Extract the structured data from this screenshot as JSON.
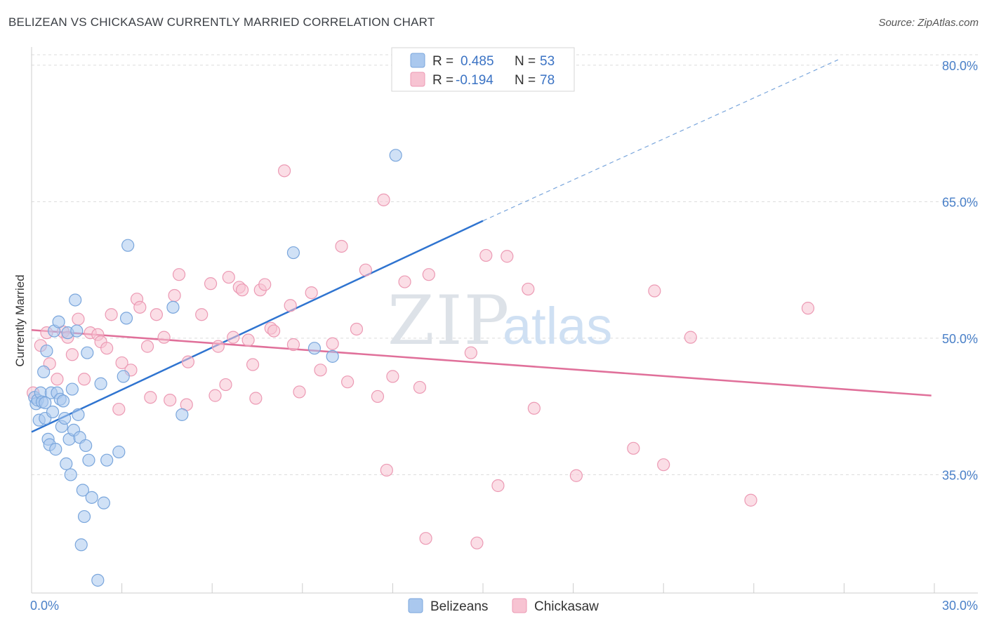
{
  "title": "BELIZEAN VS CHICKASAW CURRENTLY MARRIED CORRELATION CHART",
  "source": "Source: ZipAtlas.com",
  "watermark": {
    "zip": "ZIP",
    "atlas": "atlas"
  },
  "legend": {
    "r_label": "R =",
    "n_label": "N =",
    "rows": [
      {
        "name": "Belizeans",
        "r": "0.485",
        "n": "53",
        "color": "#aac8ee",
        "stroke": "#7aa6dc"
      },
      {
        "name": "Chickasaw",
        "r": "-0.194",
        "n": "78",
        "color": "#f7c3d2",
        "stroke": "#ec9ab4"
      }
    ]
  },
  "chart_data": {
    "type": "scatter",
    "title": "BELIZEAN VS CHICKASAW CURRENTLY MARRIED CORRELATION CHART",
    "xlabel": "",
    "ylabel": "Currently Married",
    "xlim": [
      0,
      30
    ],
    "ylim": [
      22,
      82
    ],
    "x_tick_labels": [
      "0.0%",
      "30.0%"
    ],
    "y_ticks": [
      35,
      50,
      65,
      80
    ],
    "y_tick_labels": [
      "35.0%",
      "50.0%",
      "65.0%",
      "80.0%"
    ],
    "grid": true,
    "legend_position": "top-center",
    "series": [
      {
        "name": "Belizeans",
        "color": "#7aa6dc",
        "fill": "#aac8ee",
        "points": [
          [
            0.1,
            43.5
          ],
          [
            0.15,
            42.8
          ],
          [
            0.2,
            43.2
          ],
          [
            0.25,
            41.0
          ],
          [
            0.3,
            44.0
          ],
          [
            0.35,
            43.0
          ],
          [
            0.4,
            46.3
          ],
          [
            0.45,
            41.2
          ],
          [
            0.5,
            48.6
          ],
          [
            0.55,
            38.9
          ],
          [
            0.6,
            38.3
          ],
          [
            0.65,
            44.0
          ],
          [
            0.7,
            41.9
          ],
          [
            0.75,
            50.8
          ],
          [
            0.8,
            37.8
          ],
          [
            0.85,
            44.0
          ],
          [
            0.9,
            51.8
          ],
          [
            0.95,
            43.3
          ],
          [
            1.0,
            40.3
          ],
          [
            1.05,
            43.1
          ],
          [
            1.1,
            41.2
          ],
          [
            1.15,
            36.2
          ],
          [
            1.2,
            50.6
          ],
          [
            1.25,
            38.9
          ],
          [
            1.3,
            35.0
          ],
          [
            1.35,
            44.4
          ],
          [
            1.4,
            39.9
          ],
          [
            1.45,
            54.2
          ],
          [
            1.5,
            50.8
          ],
          [
            1.55,
            41.6
          ],
          [
            1.6,
            39.1
          ],
          [
            1.65,
            27.3
          ],
          [
            1.7,
            33.3
          ],
          [
            1.75,
            30.4
          ],
          [
            1.8,
            38.2
          ],
          [
            1.85,
            48.4
          ],
          [
            1.9,
            36.6
          ],
          [
            2.0,
            32.5
          ],
          [
            2.2,
            23.4
          ],
          [
            2.3,
            45.0
          ],
          [
            2.4,
            31.9
          ],
          [
            2.5,
            36.6
          ],
          [
            2.9,
            37.5
          ],
          [
            3.05,
            45.8
          ],
          [
            3.15,
            52.2
          ],
          [
            3.2,
            60.2
          ],
          [
            4.7,
            53.4
          ],
          [
            5.0,
            41.6
          ],
          [
            8.7,
            59.4
          ],
          [
            9.4,
            48.9
          ],
          [
            10.0,
            48.0
          ],
          [
            12.1,
            70.1
          ],
          [
            0.45,
            42.9
          ]
        ]
      },
      {
        "name": "Chickasaw",
        "color": "#ec9ab4",
        "fill": "#f7c3d2",
        "points": [
          [
            0.05,
            44.0
          ],
          [
            0.3,
            49.2
          ],
          [
            0.5,
            50.6
          ],
          [
            0.6,
            47.2
          ],
          [
            0.85,
            45.5
          ],
          [
            1.05,
            50.7
          ],
          [
            1.2,
            50.1
          ],
          [
            1.35,
            48.2
          ],
          [
            1.55,
            52.1
          ],
          [
            1.75,
            45.5
          ],
          [
            1.95,
            50.6
          ],
          [
            2.2,
            50.4
          ],
          [
            2.3,
            49.6
          ],
          [
            2.5,
            48.9
          ],
          [
            2.65,
            52.6
          ],
          [
            2.9,
            42.2
          ],
          [
            3.0,
            47.3
          ],
          [
            3.3,
            46.5
          ],
          [
            3.5,
            54.3
          ],
          [
            3.6,
            53.4
          ],
          [
            3.85,
            49.1
          ],
          [
            3.95,
            43.5
          ],
          [
            4.15,
            52.6
          ],
          [
            4.4,
            50.1
          ],
          [
            4.6,
            43.2
          ],
          [
            4.75,
            54.7
          ],
          [
            4.9,
            57.0
          ],
          [
            5.15,
            42.7
          ],
          [
            5.2,
            47.4
          ],
          [
            5.65,
            52.6
          ],
          [
            5.95,
            56.0
          ],
          [
            6.1,
            43.7
          ],
          [
            6.2,
            49.1
          ],
          [
            6.45,
            44.9
          ],
          [
            6.55,
            56.7
          ],
          [
            6.7,
            50.1
          ],
          [
            6.9,
            55.6
          ],
          [
            7.0,
            55.3
          ],
          [
            7.2,
            49.8
          ],
          [
            7.35,
            47.1
          ],
          [
            7.45,
            43.4
          ],
          [
            7.6,
            55.3
          ],
          [
            7.75,
            55.9
          ],
          [
            7.95,
            51.1
          ],
          [
            8.05,
            50.8
          ],
          [
            8.4,
            68.4
          ],
          [
            8.6,
            53.6
          ],
          [
            8.7,
            49.3
          ],
          [
            8.9,
            44.1
          ],
          [
            9.3,
            55.0
          ],
          [
            9.6,
            46.5
          ],
          [
            10.0,
            49.4
          ],
          [
            10.3,
            60.1
          ],
          [
            10.5,
            45.2
          ],
          [
            10.8,
            51.0
          ],
          [
            11.1,
            57.5
          ],
          [
            11.5,
            43.6
          ],
          [
            11.7,
            65.2
          ],
          [
            11.8,
            35.5
          ],
          [
            12.0,
            45.8
          ],
          [
            12.4,
            56.2
          ],
          [
            12.9,
            44.6
          ],
          [
            13.1,
            28.0
          ],
          [
            13.2,
            57.0
          ],
          [
            14.6,
            48.4
          ],
          [
            14.8,
            27.5
          ],
          [
            15.1,
            59.1
          ],
          [
            15.5,
            33.8
          ],
          [
            15.8,
            59.0
          ],
          [
            16.5,
            55.4
          ],
          [
            16.7,
            42.3
          ],
          [
            18.1,
            34.9
          ],
          [
            20.0,
            37.9
          ],
          [
            20.7,
            55.2
          ],
          [
            21.0,
            36.1
          ],
          [
            21.9,
            50.1
          ],
          [
            23.9,
            32.2
          ],
          [
            25.8,
            53.3
          ]
        ]
      }
    ],
    "trend_lines": [
      {
        "series": "Belizeans",
        "x0": 0,
        "y0": 39.7,
        "x1": 15.0,
        "y1": 62.9,
        "dashed_extension_to": [
          26.8,
          80.6
        ]
      },
      {
        "series": "Chickasaw",
        "x0": 0,
        "y0": 50.9,
        "x1": 29.9,
        "y1": 43.7
      }
    ]
  }
}
